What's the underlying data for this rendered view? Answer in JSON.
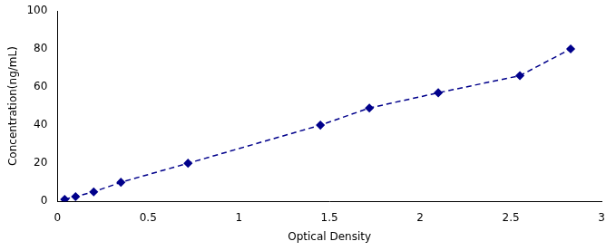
{
  "chart_data": {
    "type": "line",
    "x": [
      0.04,
      0.1,
      0.2,
      0.35,
      0.72,
      1.45,
      1.72,
      2.1,
      2.55,
      2.83
    ],
    "values": [
      1.0,
      2.5,
      5.0,
      10.0,
      20.0,
      40.0,
      49.0,
      57.0,
      66.0,
      80.0
    ],
    "color": "#00008B",
    "marker": "diamond",
    "line_style": "dashed",
    "xlabel": "Optical Density",
    "ylabel": "Concentration(ng/mL)",
    "xlim": [
      0,
      3.0
    ],
    "ylim": [
      0,
      100
    ],
    "xticks": [
      0,
      0.5,
      1,
      1.5,
      2,
      2.5,
      3
    ],
    "yticks": [
      0,
      20,
      40,
      60,
      80,
      100
    ],
    "grid": false
  }
}
